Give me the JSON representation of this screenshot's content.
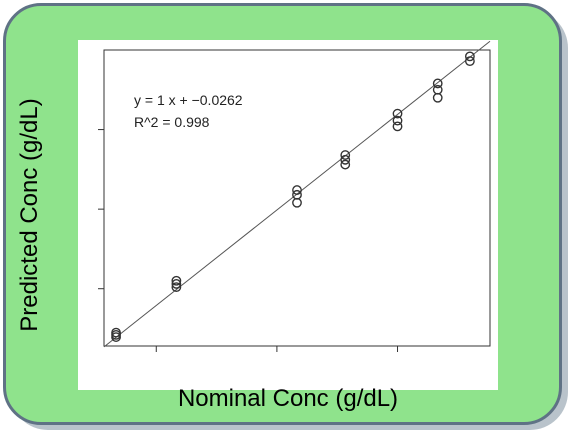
{
  "chart_data": {
    "type": "scatter",
    "xlabel": "Nominal Conc (g/dL)",
    "ylabel": "Predicted Conc (g/dL)",
    "xlim": [
      0.2,
      9.8
    ],
    "ylim": [
      0.2,
      9.5
    ],
    "x_ticks": [
      1.5,
      4.5,
      7.5
    ],
    "y_ticks": [
      2,
      4.5,
      7
    ],
    "annotations": [
      "y =  1 x +  −0.0262",
      "R^2 =  0.998"
    ],
    "fit_line": {
      "slope": 1,
      "intercept": -0.0262
    },
    "points": [
      {
        "x": 0.5,
        "y": 0.48
      },
      {
        "x": 0.5,
        "y": 0.55
      },
      {
        "x": 0.5,
        "y": 0.62
      },
      {
        "x": 2.0,
        "y": 2.05
      },
      {
        "x": 2.0,
        "y": 2.15
      },
      {
        "x": 2.0,
        "y": 2.25
      },
      {
        "x": 5.0,
        "y": 4.7
      },
      {
        "x": 5.0,
        "y": 4.95
      },
      {
        "x": 5.0,
        "y": 5.1
      },
      {
        "x": 6.2,
        "y": 5.9
      },
      {
        "x": 6.2,
        "y": 6.05
      },
      {
        "x": 6.2,
        "y": 6.2
      },
      {
        "x": 7.5,
        "y": 7.1
      },
      {
        "x": 7.5,
        "y": 7.28
      },
      {
        "x": 7.5,
        "y": 7.5
      },
      {
        "x": 8.5,
        "y": 8.0
      },
      {
        "x": 8.5,
        "y": 8.25
      },
      {
        "x": 8.5,
        "y": 8.45
      },
      {
        "x": 9.3,
        "y": 9.15
      },
      {
        "x": 9.3,
        "y": 9.3
      }
    ]
  }
}
